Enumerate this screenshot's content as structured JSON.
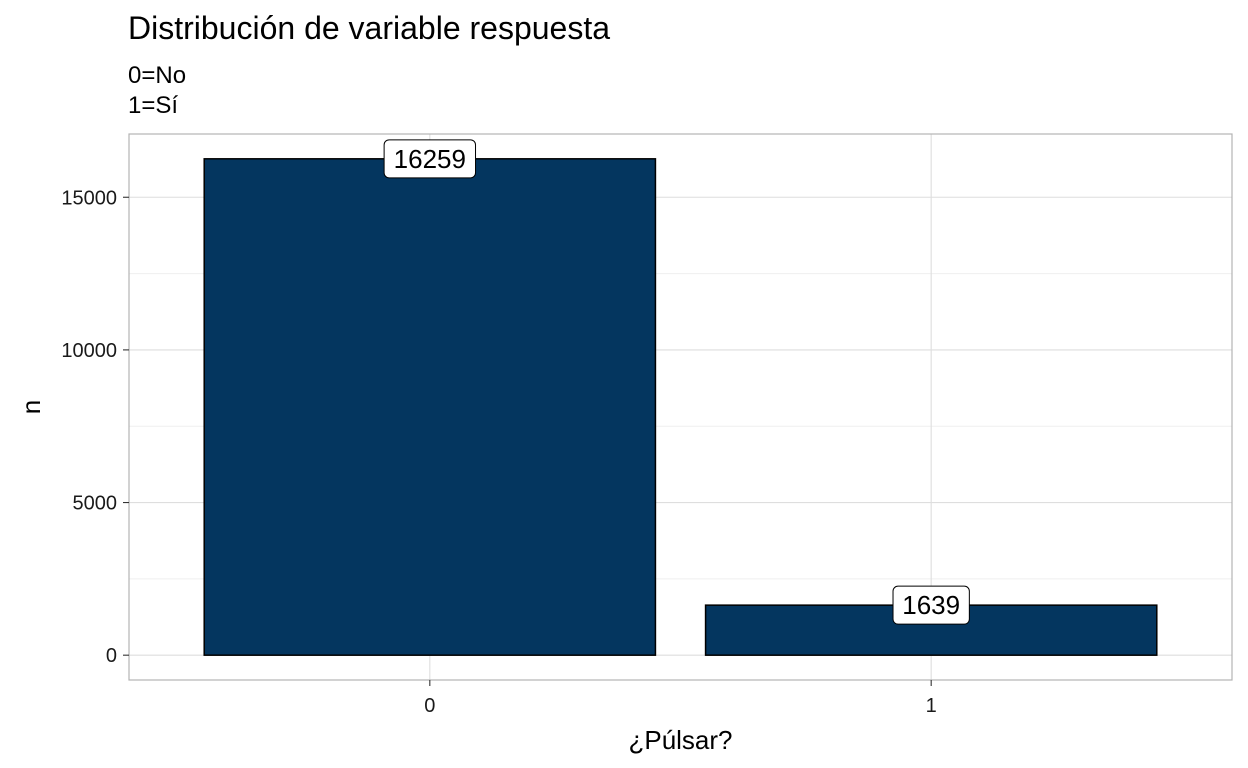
{
  "chart_data": {
    "type": "bar",
    "title": "Distribución de variable respuesta",
    "subtitle": [
      "0=No",
      "1=Sí"
    ],
    "xlabel": "¿Púlsar?",
    "ylabel": "n",
    "categories": [
      "0",
      "1"
    ],
    "values": [
      16259,
      1639
    ],
    "data_labels": [
      "16259",
      "1639"
    ],
    "yticks": [
      0,
      5000,
      10000,
      15000
    ],
    "ytick_labels": [
      "0",
      "5000",
      "10000",
      "15000"
    ],
    "ylim": [
      -813,
      17072
    ],
    "grid": true,
    "legend": "none",
    "colors": {
      "bar_fill": "#04365F",
      "bar_stroke": "#000000",
      "grid_major": "#DEDEDE",
      "grid_minor": "#EFEFEF",
      "panel_border": "#B3B3B3",
      "label_fill": "#FFFFFF"
    }
  }
}
